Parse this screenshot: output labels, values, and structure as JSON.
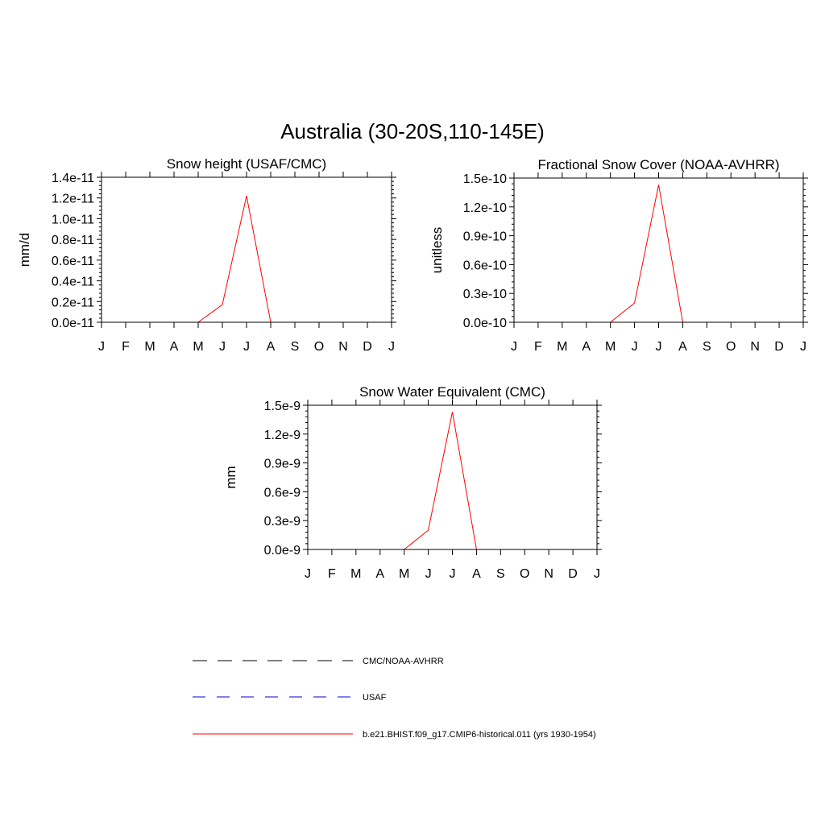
{
  "figure": {
    "title": "Australia (30-20S,110-145E)"
  },
  "legend": {
    "entries": [
      {
        "label": "CMC/NOAA-AVHRR",
        "color": "#000000",
        "dash": "dashed"
      },
      {
        "label": "USAF",
        "color": "#0000cc",
        "dash": "dashed"
      },
      {
        "label": "b.e21.BHIST.f09_g17.CMIP6-historical.011 (yrs 1930-1954)",
        "color": "#ff0000",
        "dash": "solid"
      }
    ]
  },
  "chart_data": [
    {
      "type": "line",
      "title": "Snow height (USAF/CMC)",
      "ylabel": "mm/d",
      "xlabel": "",
      "categories": [
        "J",
        "F",
        "M",
        "A",
        "M",
        "J",
        "J",
        "A",
        "S",
        "O",
        "N",
        "D",
        "J"
      ],
      "ylim": [
        0,
        1.4e-11
      ],
      "yticks": [
        0,
        2e-12,
        4e-12,
        6e-12,
        8e-12,
        1e-11,
        1.2e-11,
        1.4e-11
      ],
      "ytick_labels": [
        "0.0e-11",
        "0.2e-11",
        "0.4e-11",
        "0.6e-11",
        "0.8e-11",
        "1.0e-11",
        "1.2e-11",
        "1.4e-11"
      ],
      "series": [
        {
          "name": "b.e21.BHIST.f09_g17.CMIP6-historical.011 (yrs 1930-1954)",
          "color": "#ff0000",
          "values": [
            0,
            0,
            0,
            0,
            0,
            1.7e-12,
            1.22e-11,
            0,
            0,
            0,
            0,
            0,
            0
          ]
        },
        {
          "name": "USAF",
          "color": "#0000cc",
          "values": [
            0,
            0,
            0,
            0,
            0,
            0,
            0,
            0,
            0,
            0,
            0,
            0,
            0
          ]
        },
        {
          "name": "CMC/NOAA-AVHRR",
          "color": "#000000",
          "values": [
            0,
            0,
            0,
            0,
            0,
            0,
            0,
            0,
            0,
            0,
            0,
            0,
            0
          ]
        }
      ]
    },
    {
      "type": "line",
      "title": "Fractional Snow Cover (NOAA-AVHRR)",
      "ylabel": "unitless",
      "xlabel": "",
      "categories": [
        "J",
        "F",
        "M",
        "A",
        "M",
        "J",
        "J",
        "A",
        "S",
        "O",
        "N",
        "D",
        "J"
      ],
      "ylim": [
        0,
        1.5e-10
      ],
      "yticks": [
        0,
        3e-11,
        6e-11,
        9e-11,
        1.2e-10,
        1.5e-10
      ],
      "ytick_labels": [
        "0.0e-10",
        "0.3e-10",
        "0.6e-10",
        "0.9e-10",
        "1.2e-10",
        "1.5e-10"
      ],
      "series": [
        {
          "name": "b.e21.BHIST.f09_g17.CMIP6-historical.011 (yrs 1930-1954)",
          "color": "#ff0000",
          "values": [
            0,
            0,
            0,
            0,
            0,
            2e-11,
            1.43e-10,
            0,
            0,
            0,
            0,
            0,
            0
          ]
        },
        {
          "name": "CMC/NOAA-AVHRR",
          "color": "#000000",
          "values": [
            0,
            0,
            0,
            0,
            0,
            0,
            0,
            0,
            0,
            0,
            0,
            0,
            0
          ]
        }
      ]
    },
    {
      "type": "line",
      "title": "Snow Water Equivalent (CMC)",
      "ylabel": "mm",
      "xlabel": "",
      "categories": [
        "J",
        "F",
        "M",
        "A",
        "M",
        "J",
        "J",
        "A",
        "S",
        "O",
        "N",
        "D",
        "J"
      ],
      "ylim": [
        0,
        1.5e-09
      ],
      "yticks": [
        0,
        3e-10,
        6e-10,
        9e-10,
        1.2e-09,
        1.5e-09
      ],
      "ytick_labels": [
        "0.0e-9",
        "0.3e-9",
        "0.6e-9",
        "0.9e-9",
        "1.2e-9",
        "1.5e-9"
      ],
      "series": [
        {
          "name": "b.e21.BHIST.f09_g17.CMIP6-historical.011 (yrs 1930-1954)",
          "color": "#ff0000",
          "values": [
            0,
            0,
            0,
            0,
            0,
            2e-10,
            1.43e-09,
            0,
            0,
            0,
            0,
            0,
            0
          ]
        },
        {
          "name": "CMC/NOAA-AVHRR",
          "color": "#000000",
          "values": [
            0,
            0,
            0,
            0,
            0,
            0,
            0,
            0,
            0,
            0,
            0,
            0,
            0
          ]
        }
      ]
    }
  ]
}
